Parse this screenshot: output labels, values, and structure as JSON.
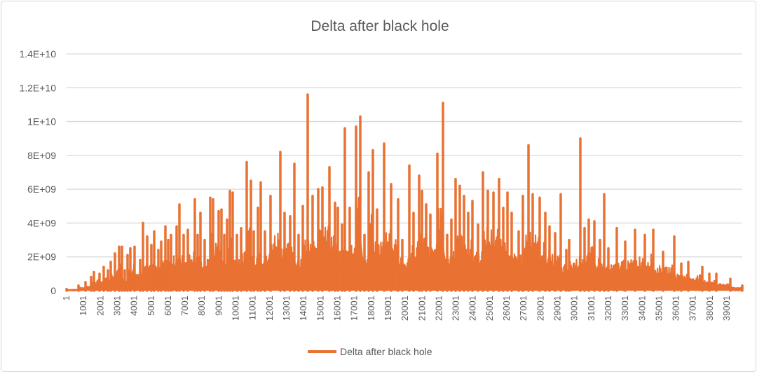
{
  "chart_data": {
    "type": "line",
    "title": "Delta after black hole",
    "xlabel": "",
    "ylabel": "",
    "legend": {
      "position": "bottom",
      "entries": [
        "Delta after black hole"
      ]
    },
    "grid": true,
    "color": "#E97132",
    "ylim": [
      0,
      14000000000
    ],
    "xlim": [
      1,
      39910
    ],
    "y_tick_labels": [
      "0",
      "2E+09",
      "4E+09",
      "6E+09",
      "8E+09",
      "1E+10",
      "1.2E+10",
      "1.4E+10"
    ],
    "y_tick_values": [
      0,
      2000000000,
      4000000000,
      6000000000,
      8000000000,
      10000000000,
      12000000000,
      14000000000
    ],
    "x_tick_labels": [
      "1",
      "1001",
      "2001",
      "3001",
      "4001",
      "5001",
      "6001",
      "7001",
      "8001",
      "9001",
      "10001",
      "11001",
      "12001",
      "13001",
      "14001",
      "15001",
      "16001",
      "17001",
      "18001",
      "19001",
      "20001",
      "21001",
      "22001",
      "23001",
      "24001",
      "25001",
      "26001",
      "27001",
      "28001",
      "29001",
      "30001",
      "31001",
      "32001",
      "33001",
      "34001",
      "35001",
      "36001",
      "37001",
      "38001",
      "39001"
    ],
    "series": [
      {
        "name": "Delta after black hole",
        "note_points": "approximate local peak values [x, y]",
        "points": [
          [
            1,
            100000000.0
          ],
          [
            704,
            300000000.0
          ],
          [
            1118,
            500000000.0
          ],
          [
            1449,
            800000000.0
          ],
          [
            1615,
            1100000000.0
          ],
          [
            1946,
            1000000000.0
          ],
          [
            2194,
            1400000000.0
          ],
          [
            2443,
            1200000000.0
          ],
          [
            2608,
            1700000000.0
          ],
          [
            2857,
            2200000000.0
          ],
          [
            3105,
            2600000000.0
          ],
          [
            3271,
            2600000000.0
          ],
          [
            3436,
            1200000000.0
          ],
          [
            3602,
            2100000000.0
          ],
          [
            3767,
            2500000000.0
          ],
          [
            4016,
            2600000000.0
          ],
          [
            4347,
            1800000000.0
          ],
          [
            4513,
            4000000000.0
          ],
          [
            4761,
            3200000000.0
          ],
          [
            5009,
            2700000000.0
          ],
          [
            5175,
            3500000000.0
          ],
          [
            5423,
            2400000000.0
          ],
          [
            5589,
            2900000000.0
          ],
          [
            5837,
            3800000000.0
          ],
          [
            6003,
            3000000000.0
          ],
          [
            6169,
            3300000000.0
          ],
          [
            6500,
            3800000000.0
          ],
          [
            6665,
            5100000000.0
          ],
          [
            6914,
            3300000000.0
          ],
          [
            7162,
            3600000000.0
          ],
          [
            7576,
            5400000000.0
          ],
          [
            7742,
            3300000000.0
          ],
          [
            7907,
            4600000000.0
          ],
          [
            8156,
            3000000000.0
          ],
          [
            8487,
            5500000000.0
          ],
          [
            8653,
            5400000000.0
          ],
          [
            8984,
            4700000000.0
          ],
          [
            9149,
            4800000000.0
          ],
          [
            9315,
            3300000000.0
          ],
          [
            9481,
            4200000000.0
          ],
          [
            9646,
            5900000000.0
          ],
          [
            9812,
            5800000000.0
          ],
          [
            10060,
            3300000000.0
          ],
          [
            10309,
            3700000000.0
          ],
          [
            10640,
            7600000000.0
          ],
          [
            10888,
            6500000000.0
          ],
          [
            11054,
            3500000000.0
          ],
          [
            11302,
            4900000000.0
          ],
          [
            11468,
            6400000000.0
          ],
          [
            11716,
            3500000000.0
          ],
          [
            12047,
            5600000000.0
          ],
          [
            12627,
            8200000000.0
          ],
          [
            12875,
            4600000000.0
          ],
          [
            13207,
            4400000000.0
          ],
          [
            13455,
            7500000000.0
          ],
          [
            13703,
            3300000000.0
          ],
          [
            13952,
            5000000000.0
          ],
          [
            14242,
            11600000000.0
          ],
          [
            14531,
            5600000000.0
          ],
          [
            14863,
            6000000000.0
          ],
          [
            15111,
            6100000000.0
          ],
          [
            15525,
            7300000000.0
          ],
          [
            15856,
            5200000000.0
          ],
          [
            16022,
            4900000000.0
          ],
          [
            16270,
            3900000000.0
          ],
          [
            16436,
            9600000000.0
          ],
          [
            16726,
            4900000000.0
          ],
          [
            17098,
            9700000000.0
          ],
          [
            17347,
            10300000000.0
          ],
          [
            17595,
            3300000000.0
          ],
          [
            17843,
            7000000000.0
          ],
          [
            18092,
            8300000000.0
          ],
          [
            18340,
            4800000000.0
          ],
          [
            18754,
            8700000000.0
          ],
          [
            19168,
            6300000000.0
          ],
          [
            19582,
            5400000000.0
          ],
          [
            19831,
            3000000000.0
          ],
          [
            20245,
            7400000000.0
          ],
          [
            20493,
            4600000000.0
          ],
          [
            20824,
            6800000000.0
          ],
          [
            20990,
            5900000000.0
          ],
          [
            21238,
            5100000000.0
          ],
          [
            21487,
            4500000000.0
          ],
          [
            21901,
            8100000000.0
          ],
          [
            22232,
            11100000000.0
          ],
          [
            22480,
            3300000000.0
          ],
          [
            22729,
            4200000000.0
          ],
          [
            22977,
            6600000000.0
          ],
          [
            23225,
            6200000000.0
          ],
          [
            23474,
            5600000000.0
          ],
          [
            23722,
            4600000000.0
          ],
          [
            23971,
            5300000000.0
          ],
          [
            24302,
            3900000000.0
          ],
          [
            24592,
            7000000000.0
          ],
          [
            24881,
            5900000000.0
          ],
          [
            25213,
            5800000000.0
          ],
          [
            25544,
            6600000000.0
          ],
          [
            25792,
            4900000000.0
          ],
          [
            26041,
            5800000000.0
          ],
          [
            26289,
            4600000000.0
          ],
          [
            26703,
            3500000000.0
          ],
          [
            26951,
            5600000000.0
          ],
          [
            27283,
            8600000000.0
          ],
          [
            27531,
            5700000000.0
          ],
          [
            27945,
            5500000000.0
          ],
          [
            28276,
            4600000000.0
          ],
          [
            28525,
            3800000000.0
          ],
          [
            28856,
            3400000000.0
          ],
          [
            29187,
            5700000000.0
          ],
          [
            29518,
            2400000000.0
          ],
          [
            29684,
            3000000000.0
          ],
          [
            30346,
            9000000000.0
          ],
          [
            30595,
            3700000000.0
          ],
          [
            30843,
            4200000000.0
          ],
          [
            31174,
            4100000000.0
          ],
          [
            31505,
            3000000000.0
          ],
          [
            31754,
            5700000000.0
          ],
          [
            32002,
            2500000000.0
          ],
          [
            32499,
            3700000000.0
          ],
          [
            32996,
            2900000000.0
          ],
          [
            33575,
            3600000000.0
          ],
          [
            34155,
            3300000000.0
          ],
          [
            34652,
            3600000000.0
          ],
          [
            35231,
            2300000000.0
          ],
          [
            35894,
            3200000000.0
          ],
          [
            36308,
            1600000000.0
          ],
          [
            36722,
            1700000000.0
          ],
          [
            37550,
            1400000000.0
          ],
          [
            37964,
            1000000000.0
          ],
          [
            38378,
            1000000000.0
          ],
          [
            39206,
            700000000.0
          ],
          [
            39910,
            300000000.0
          ]
        ]
      }
    ]
  }
}
